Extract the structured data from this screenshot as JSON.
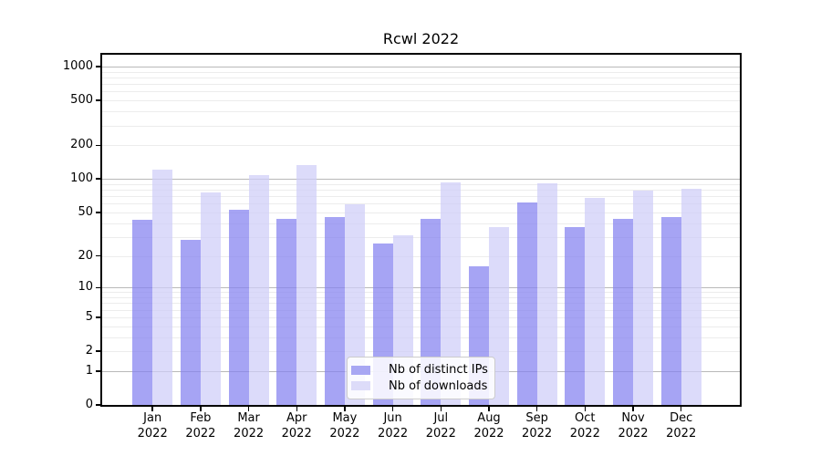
{
  "chart_data": {
    "type": "bar",
    "title": "Rcwl 2022",
    "scale": "log10(value+1)",
    "categories": [
      "Jan 2022",
      "Feb 2022",
      "Mar 2022",
      "Apr 2022",
      "May 2022",
      "Jun 2022",
      "Jul 2022",
      "Aug 2022",
      "Sep 2022",
      "Oct 2022",
      "Nov 2022",
      "Dec 2022"
    ],
    "series": [
      {
        "name": "Nb of distinct IPs",
        "color": "#a8a7f3",
        "fill": "rgba(131,129,240,0.72)",
        "values": [
          43,
          28,
          53,
          44,
          45,
          26,
          44,
          16,
          62,
          37,
          44,
          45
        ]
      },
      {
        "name": "Nb of downloads",
        "color": "#dddcf9",
        "fill": "rgba(206,205,248,0.72)",
        "values": [
          122,
          76,
          109,
          134,
          59,
          31,
          94,
          37,
          91,
          68,
          78,
          81
        ]
      }
    ],
    "yticks": [
      0,
      1,
      2,
      5,
      10,
      20,
      50,
      100,
      200,
      500,
      1000
    ],
    "ylim": [
      0,
      1273
    ],
    "xlabel": "",
    "ylabel": "",
    "grid": "horizontal",
    "grid_major_color": "#b9b9b9",
    "grid_minor_color": "#ececec",
    "legend_position": "inside-bottom-center",
    "axis_color": "#000000",
    "background_color": "#ffffff"
  }
}
